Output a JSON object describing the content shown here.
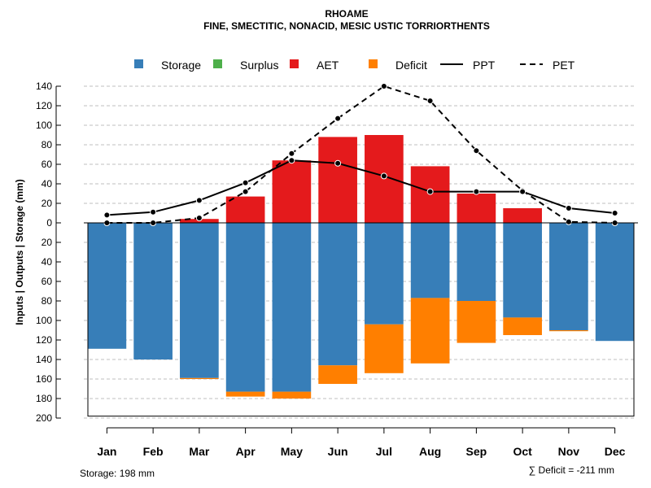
{
  "chart_data": {
    "type": "bar",
    "title": "RHOAME",
    "subtitle": "FINE, SMECTITIC, NONACID, MESIC USTIC TORRIORTHENTS",
    "ylabel": "Inputs | Outputs | Storage     (mm)",
    "ylim": [
      -200,
      140
    ],
    "yticks": [
      140,
      120,
      100,
      80,
      60,
      40,
      20,
      0,
      -20,
      -40,
      -60,
      -80,
      -100,
      -120,
      -140,
      -160,
      -180,
      -200
    ],
    "ytick_labels": [
      "140",
      "120",
      "100",
      "80",
      "60",
      "40",
      "20",
      "0",
      "20",
      "40",
      "60",
      "80",
      "100",
      "120",
      "140",
      "160",
      "180",
      "200"
    ],
    "grid": true,
    "categories": [
      "Jan",
      "Feb",
      "Mar",
      "Apr",
      "May",
      "Jun",
      "Jul",
      "Aug",
      "Sep",
      "Oct",
      "Nov",
      "Dec"
    ],
    "bars": {
      "storage": [
        129,
        140,
        159,
        173,
        173,
        146,
        104,
        77,
        80,
        97,
        110,
        121
      ],
      "deficit": [
        0,
        0,
        1,
        5,
        7,
        19,
        50,
        67,
        43,
        18,
        1,
        0
      ],
      "aet": [
        0,
        0,
        4,
        27,
        64,
        88,
        90,
        58,
        30,
        15,
        0,
        0
      ],
      "surplus": [
        0,
        0,
        0,
        0,
        0,
        0,
        0,
        0,
        0,
        0,
        0,
        0
      ]
    },
    "lines": {
      "ppt": [
        8,
        11,
        23,
        41,
        64,
        61,
        48,
        32,
        32,
        32,
        15,
        10
      ],
      "pet": [
        0,
        0,
        5,
        32,
        71,
        107,
        140,
        125,
        74,
        33,
        1,
        0
      ]
    },
    "legend": {
      "position": "top",
      "entries": [
        {
          "key": "storage",
          "label": "Storage",
          "kind": "box",
          "color": "#377eb8"
        },
        {
          "key": "surplus",
          "label": "Surplus",
          "kind": "box",
          "color": "#4daf4a"
        },
        {
          "key": "aet",
          "label": "AET",
          "kind": "box",
          "color": "#e41a1c"
        },
        {
          "key": "deficit",
          "label": "Deficit",
          "kind": "box",
          "color": "#ff7f00"
        },
        {
          "key": "ppt",
          "label": "PPT",
          "kind": "solid"
        },
        {
          "key": "pet",
          "label": "PET",
          "kind": "dashed"
        }
      ]
    },
    "colors": {
      "storage": "#377eb8",
      "surplus": "#4daf4a",
      "aet": "#e41a1c",
      "deficit": "#ff7f00",
      "line": "#000000",
      "grid": "#bfbfbf"
    },
    "footer_left": "Storage: 198 mm",
    "footer_right": "∑ Deficit = -211 mm"
  }
}
